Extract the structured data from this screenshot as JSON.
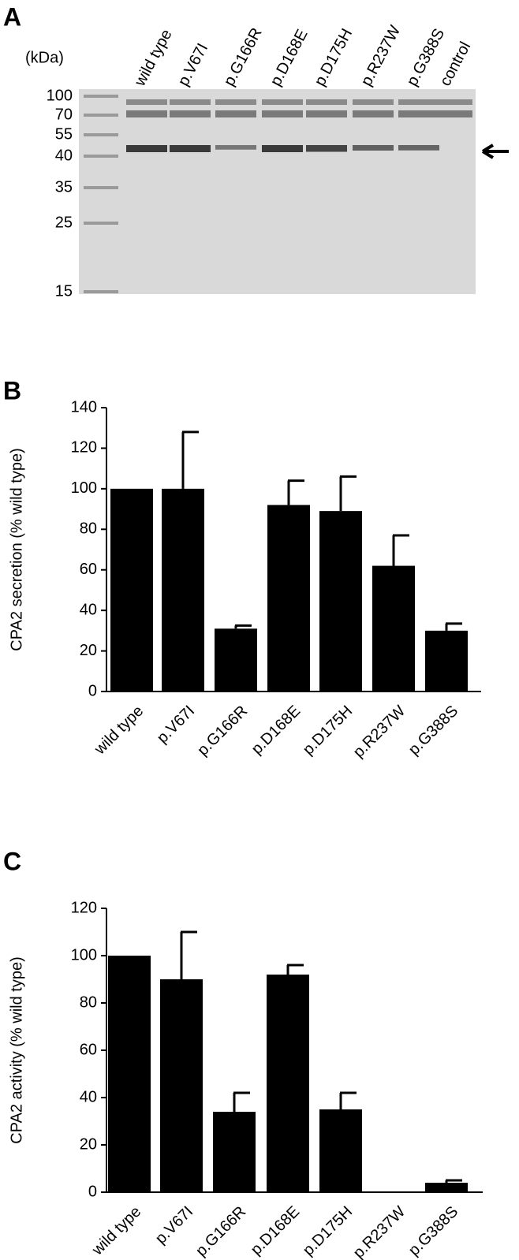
{
  "gel": {
    "panel": "A",
    "unit_label": "(kDa)",
    "markers": [
      100,
      70,
      55,
      40,
      35,
      25,
      15
    ],
    "lanes": [
      "wild type",
      "p.V67I",
      "p.G166R",
      "p.D168E",
      "p.D175H",
      "p.R237W",
      "p.G388S",
      "control"
    ]
  },
  "chart_data": [
    {
      "type": "bar",
      "panel": "B",
      "ylabel": "CPA2 secretion (% wild type)",
      "categories": [
        "wild type",
        "p.V67I",
        "p.G166R",
        "p.D168E",
        "p.D175H",
        "p.R237W",
        "p.G388S"
      ],
      "values": [
        100,
        100,
        31,
        92,
        89,
        62,
        30
      ],
      "errors": [
        null,
        28,
        1.5,
        12,
        17,
        15,
        3.5
      ],
      "color": "#000000",
      "ylim": [
        0,
        140
      ],
      "yticks": [
        0,
        20,
        40,
        60,
        80,
        100,
        120,
        140
      ]
    },
    {
      "type": "bar",
      "panel": "C",
      "ylabel": "CPA2 activity (% wild type)",
      "categories": [
        "wild type",
        "p.V67I",
        "p.G166R",
        "p.D168E",
        "p.D175H",
        "p.R237W",
        "p.G388S"
      ],
      "values": [
        100,
        90,
        34,
        92,
        35,
        0,
        4
      ],
      "errors": [
        null,
        20,
        8,
        4,
        7,
        null,
        1
      ],
      "color": "#000000",
      "ylim": [
        0,
        120
      ],
      "yticks": [
        0,
        20,
        40,
        60,
        80,
        100,
        120
      ]
    }
  ]
}
